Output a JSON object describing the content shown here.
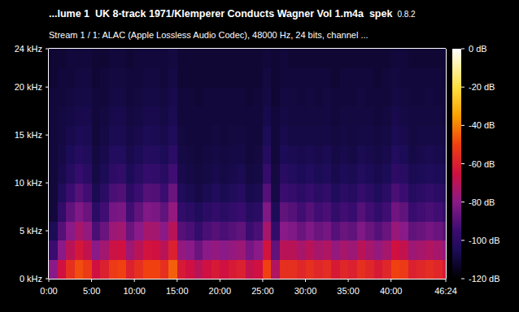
{
  "chart_data": {
    "type": "heatmap",
    "title": "...lume 1  UK 8-track 1971/Klemperer Conducts Wagner Vol 1.m4a  spek",
    "subtitle": "Stream 1 / 1: ALAC (Apple Lossless Audio Codec), 48000 Hz, 24 bits, channel ...",
    "annotations": [
      "0.8.2"
    ],
    "xlim": [
      0,
      2784
    ],
    "xticks": [
      {
        "value": 0,
        "label": "0:00"
      },
      {
        "value": 300,
        "label": "5:00"
      },
      {
        "value": 600,
        "label": "10:00"
      },
      {
        "value": 900,
        "label": "15:00"
      },
      {
        "value": 1200,
        "label": "20:00"
      },
      {
        "value": 1500,
        "label": "25:00"
      },
      {
        "value": 1800,
        "label": "30:00"
      },
      {
        "value": 2100,
        "label": "35:00"
      },
      {
        "value": 2400,
        "label": "40:00"
      },
      {
        "value": 2784,
        "label": "46:24"
      }
    ],
    "ylim": [
      0,
      24
    ],
    "yticks": [
      {
        "value": 0,
        "label": "0 kHz"
      },
      {
        "value": 5,
        "label": "5 kHz"
      },
      {
        "value": 10,
        "label": "10 kHz"
      },
      {
        "value": 15,
        "label": "15 kHz"
      },
      {
        "value": 20,
        "label": "20 kHz"
      },
      {
        "value": 24,
        "label": "24 kHz"
      }
    ],
    "x_bins": [
      0,
      60,
      120,
      180,
      240,
      300,
      360,
      420,
      480,
      540,
      600,
      660,
      720,
      780,
      840,
      900,
      960,
      1020,
      1080,
      1140,
      1200,
      1260,
      1320,
      1380,
      1440,
      1500,
      1560,
      1620,
      1680,
      1740,
      1800,
      1860,
      1920,
      1980,
      2040,
      2100,
      2160,
      2220,
      2280,
      2340,
      2400,
      2460,
      2520,
      2580,
      2640,
      2700,
      2760,
      2784
    ],
    "y_bins": [
      0,
      2,
      4,
      6,
      8,
      10,
      12,
      14,
      16,
      18,
      20,
      22,
      24
    ],
    "cells": [
      [
        -80,
        -65,
        -55,
        -48,
        -52,
        -65,
        -60,
        -52,
        -50,
        -60,
        -55,
        -50,
        -50,
        -55,
        -45,
        -62,
        -65,
        -70,
        -65,
        -62,
        -65,
        -62,
        -60,
        -68,
        -65,
        -50,
        -72,
        -55,
        -55,
        -58,
        -55,
        -58,
        -56,
        -62,
        -58,
        -60,
        -55,
        -58,
        -62,
        -58,
        -50,
        -52,
        -60,
        -58,
        -56,
        -58,
        -62
      ],
      [
        -95,
        -80,
        -70,
        -63,
        -68,
        -80,
        -75,
        -66,
        -65,
        -76,
        -70,
        -64,
        -65,
        -70,
        -60,
        -78,
        -80,
        -86,
        -80,
        -78,
        -80,
        -78,
        -76,
        -84,
        -80,
        -64,
        -88,
        -70,
        -70,
        -74,
        -70,
        -74,
        -72,
        -78,
        -74,
        -76,
        -70,
        -74,
        -78,
        -74,
        -65,
        -68,
        -76,
        -74,
        -72,
        -74,
        -78
      ],
      [
        -105,
        -90,
        -80,
        -74,
        -78,
        -92,
        -86,
        -76,
        -75,
        -86,
        -80,
        -74,
        -75,
        -80,
        -70,
        -90,
        -92,
        -97,
        -92,
        -90,
        -92,
        -90,
        -88,
        -95,
        -92,
        -74,
        -98,
        -80,
        -82,
        -86,
        -82,
        -86,
        -84,
        -90,
        -86,
        -88,
        -82,
        -86,
        -90,
        -86,
        -77,
        -80,
        -88,
        -86,
        -84,
        -86,
        -90
      ],
      [
        -110,
        -98,
        -88,
        -82,
        -86,
        -100,
        -94,
        -84,
        -83,
        -94,
        -88,
        -82,
        -83,
        -88,
        -78,
        -98,
        -100,
        -104,
        -100,
        -98,
        -100,
        -98,
        -96,
        -102,
        -100,
        -82,
        -105,
        -88,
        -90,
        -94,
        -90,
        -94,
        -92,
        -98,
        -94,
        -96,
        -90,
        -94,
        -98,
        -94,
        -85,
        -88,
        -96,
        -94,
        -92,
        -94,
        -97
      ],
      [
        -110,
        -104,
        -95,
        -90,
        -94,
        -106,
        -100,
        -92,
        -91,
        -100,
        -95,
        -90,
        -91,
        -95,
        -86,
        -104,
        -106,
        -108,
        -106,
        -104,
        -106,
        -104,
        -102,
        -107,
        -106,
        -90,
        -108,
        -95,
        -97,
        -100,
        -97,
        -100,
        -98,
        -104,
        -100,
        -102,
        -97,
        -100,
        -104,
        -100,
        -92,
        -95,
        -102,
        -100,
        -98,
        -100,
        -102
      ],
      [
        -110,
        -107,
        -102,
        -97,
        -100,
        -108,
        -105,
        -99,
        -98,
        -105,
        -101,
        -97,
        -98,
        -101,
        -94,
        -107,
        -108,
        -109,
        -108,
        -107,
        -108,
        -107,
        -106,
        -109,
        -108,
        -97,
        -109,
        -101,
        -103,
        -105,
        -103,
        -105,
        -104,
        -107,
        -105,
        -106,
        -103,
        -105,
        -107,
        -105,
        -99,
        -101,
        -106,
        -105,
        -104,
        -105,
        -106
      ],
      [
        -110,
        -108,
        -105,
        -102,
        -104,
        -109,
        -107,
        -103,
        -103,
        -107,
        -105,
        -102,
        -103,
        -105,
        -100,
        -108,
        -109,
        -110,
        -109,
        -108,
        -109,
        -108,
        -108,
        -110,
        -109,
        -102,
        -110,
        -105,
        -106,
        -107,
        -106,
        -107,
        -106,
        -108,
        -107,
        -108,
        -106,
        -107,
        -108,
        -107,
        -103,
        -105,
        -108,
        -107,
        -106,
        -107,
        -108
      ],
      [
        -110,
        -109,
        -107,
        -105,
        -106,
        -110,
        -108,
        -106,
        -106,
        -108,
        -107,
        -105,
        -106,
        -107,
        -104,
        -109,
        -110,
        -110,
        -110,
        -109,
        -110,
        -109,
        -109,
        -110,
        -110,
        -105,
        -110,
        -107,
        -108,
        -108,
        -108,
        -108,
        -108,
        -109,
        -108,
        -109,
        -108,
        -108,
        -109,
        -108,
        -106,
        -107,
        -109,
        -108,
        -108,
        -108,
        -109
      ],
      [
        -110,
        -109,
        -108,
        -107,
        -107,
        -110,
        -109,
        -107,
        -107,
        -109,
        -108,
        -107,
        -107,
        -108,
        -106,
        -110,
        -110,
        -110,
        -110,
        -110,
        -110,
        -110,
        -110,
        -110,
        -110,
        -107,
        -110,
        -108,
        -109,
        -109,
        -109,
        -109,
        -109,
        -110,
        -109,
        -109,
        -109,
        -109,
        -110,
        -109,
        -107,
        -108,
        -109,
        -109,
        -109,
        -109,
        -110
      ],
      [
        -110,
        -110,
        -109,
        -108,
        -108,
        -110,
        -110,
        -108,
        -108,
        -110,
        -109,
        -108,
        -108,
        -109,
        -107,
        -110,
        -110,
        -111,
        -110,
        -110,
        -110,
        -110,
        -110,
        -111,
        -110,
        -108,
        -111,
        -109,
        -109,
        -110,
        -109,
        -110,
        -109,
        -110,
        -110,
        -110,
        -109,
        -110,
        -110,
        -110,
        -108,
        -109,
        -110,
        -110,
        -109,
        -110,
        -110
      ],
      [
        -111,
        -110,
        -110,
        -109,
        -109,
        -111,
        -110,
        -109,
        -109,
        -110,
        -110,
        -109,
        -109,
        -110,
        -108,
        -111,
        -111,
        -111,
        -111,
        -111,
        -111,
        -111,
        -111,
        -111,
        -111,
        -109,
        -111,
        -110,
        -110,
        -110,
        -110,
        -110,
        -110,
        -111,
        -110,
        -110,
        -110,
        -110,
        -111,
        -110,
        -109,
        -110,
        -110,
        -110,
        -110,
        -110,
        -111
      ],
      [
        -111,
        -111,
        -110,
        -110,
        -110,
        -111,
        -111,
        -110,
        -110,
        -111,
        -110,
        -110,
        -110,
        -110,
        -109,
        -111,
        -111,
        -111,
        -111,
        -111,
        -111,
        -111,
        -111,
        -111,
        -111,
        -110,
        -111,
        -110,
        -111,
        -111,
        -111,
        -111,
        -111,
        -111,
        -111,
        -111,
        -111,
        -111,
        -111,
        -111,
        -110,
        -110,
        -111,
        -111,
        -111,
        -111,
        -111
      ]
    ],
    "colorbar": {
      "range": [
        -120,
        0
      ],
      "ticks": [
        {
          "value": 0,
          "label": "0 dB"
        },
        {
          "value": -20,
          "label": "-20 dB"
        },
        {
          "value": -40,
          "label": "-40 dB"
        },
        {
          "value": -60,
          "label": "-60 dB"
        },
        {
          "value": -80,
          "label": "-80 dB"
        },
        {
          "value": -100,
          "label": "-100 dB"
        },
        {
          "value": -120,
          "label": "-120 dB"
        }
      ]
    }
  }
}
